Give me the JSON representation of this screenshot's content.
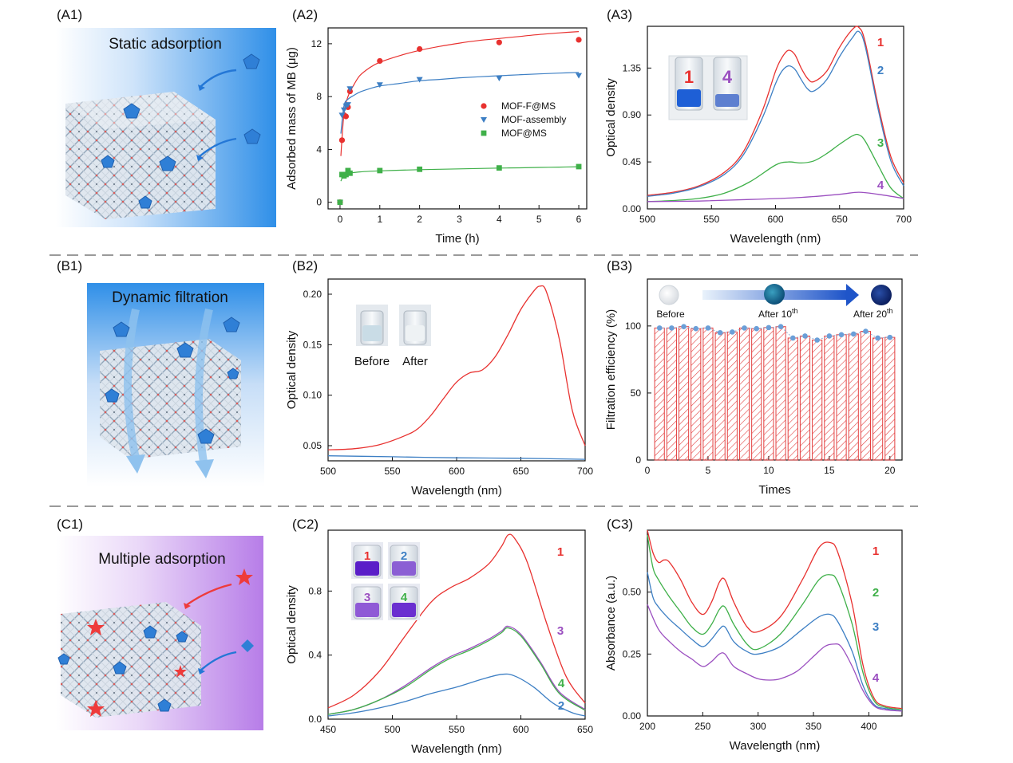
{
  "colors": {
    "red": "#e8312f",
    "blue": "#3d7fc4",
    "green": "#3fb049",
    "purple": "#9b4fc0",
    "divider": "#9a9a9a",
    "bar_hatch": "#e34040",
    "dot": "#6a9fd8"
  },
  "panel_labels": {
    "A1": "(A1)",
    "A2": "(A2)",
    "A3": "(A3)",
    "B1": "(B1)",
    "B2": "(B2)",
    "B3": "(B3)",
    "C1": "(C1)",
    "C2": "(C2)",
    "C3": "(C3)"
  },
  "illustrations": {
    "A1": {
      "title": "Static adsorption",
      "gradient": [
        "#ffffff",
        "#2f8fe8"
      ],
      "molecules": "pentagon"
    },
    "B1": {
      "title": "Dynamic filtration",
      "gradient": [
        "#2f8fe8",
        "#ffffff"
      ],
      "molecules": "pentagon"
    },
    "C1": {
      "title": "Multiple adsorption",
      "gradient": [
        "#ffffff",
        "#b77de8"
      ],
      "molecules": "star+pentagon"
    }
  },
  "chart_data": [
    {
      "id": "A2",
      "type": "scatter",
      "xlabel": "Time (h)",
      "ylabel": "Adsorbed mass of MB (μg)",
      "xlim": [
        -0.3,
        6.2
      ],
      "ylim": [
        -0.5,
        13.2
      ],
      "xticks": [
        0,
        1,
        2,
        3,
        4,
        5,
        6
      ],
      "yticks": [
        0,
        4,
        8,
        12
      ],
      "legend_position": "center-right",
      "series": [
        {
          "name": "MOF-F@MS",
          "color": "#e8312f",
          "marker": "circle",
          "x": [
            0,
            0.05,
            0.1,
            0.15,
            0.2,
            0.25,
            1,
            2,
            4,
            6
          ],
          "y": [
            0,
            4.7,
            6.6,
            6.5,
            7.2,
            8.4,
            10.7,
            11.6,
            12.1,
            12.3
          ],
          "fit_x": [
            0.02,
            0.1,
            0.2,
            0.35,
            0.5,
            0.75,
            1,
            1.5,
            2,
            2.5,
            3,
            3.5,
            4,
            4.5,
            5,
            5.5,
            6
          ],
          "fit_y": [
            3.5,
            6.7,
            8.0,
            8.9,
            9.6,
            10.2,
            10.6,
            11.1,
            11.5,
            11.8,
            12.05,
            12.25,
            12.4,
            12.55,
            12.7,
            12.82,
            12.92
          ]
        },
        {
          "name": "MOF-assembly",
          "color": "#3d7fc4",
          "marker": "triangle-down",
          "x": [
            0,
            0.05,
            0.1,
            0.15,
            0.2,
            0.25,
            1,
            2,
            4,
            6
          ],
          "y": [
            0,
            6.6,
            7.0,
            7.3,
            7.4,
            8.6,
            8.9,
            9.3,
            9.4,
            9.6
          ],
          "fit_x": [
            0.02,
            0.1,
            0.2,
            0.35,
            0.5,
            0.75,
            1,
            1.5,
            2,
            2.5,
            3,
            3.5,
            4,
            4.5,
            5,
            5.5,
            6
          ],
          "fit_y": [
            5.2,
            7.3,
            7.8,
            8.1,
            8.35,
            8.6,
            8.8,
            9.0,
            9.2,
            9.3,
            9.42,
            9.5,
            9.58,
            9.65,
            9.72,
            9.78,
            9.83
          ]
        },
        {
          "name": "MOF@MS",
          "color": "#3fb049",
          "marker": "square",
          "x": [
            0,
            0.05,
            0.1,
            0.15,
            0.2,
            0.25,
            1,
            2,
            4,
            6
          ],
          "y": [
            0,
            2.1,
            2.0,
            2.1,
            2.4,
            2.2,
            2.4,
            2.5,
            2.6,
            2.7
          ],
          "fit_x": [
            0.02,
            0.1,
            0.2,
            0.35,
            0.5,
            0.75,
            1,
            1.5,
            2,
            2.5,
            3,
            3.5,
            4,
            4.5,
            5,
            5.5,
            6
          ],
          "fit_y": [
            1.6,
            2.1,
            2.2,
            2.25,
            2.3,
            2.35,
            2.38,
            2.43,
            2.47,
            2.5,
            2.53,
            2.56,
            2.59,
            2.61,
            2.64,
            2.66,
            2.69
          ]
        }
      ]
    },
    {
      "id": "A3",
      "type": "line",
      "xlabel": "Wavelength (nm)",
      "ylabel": "Optical density",
      "xlim": [
        500,
        700
      ],
      "ylim": [
        0,
        1.75
      ],
      "xticks": [
        500,
        550,
        600,
        650,
        700
      ],
      "yticks": [
        0.0,
        0.45,
        0.9,
        1.35
      ],
      "ytick_labels": [
        "0.00",
        "0.45",
        "0.90",
        "1.35"
      ],
      "inset": {
        "labels": [
          "1",
          "4"
        ],
        "colors": [
          "#e8312f",
          "#9b4fc0"
        ],
        "liquid": [
          "#1e5fd6",
          "#5d7fd0"
        ]
      },
      "series": [
        {
          "name": "1",
          "color": "#e8312f",
          "x": [
            500,
            520,
            540,
            560,
            575,
            590,
            600,
            605,
            610,
            615,
            620,
            625,
            630,
            640,
            650,
            660,
            665,
            670,
            680,
            690,
            700
          ],
          "y": [
            0.13,
            0.16,
            0.22,
            0.35,
            0.55,
            0.95,
            1.32,
            1.45,
            1.52,
            1.48,
            1.35,
            1.25,
            1.22,
            1.32,
            1.55,
            1.72,
            1.74,
            1.6,
            1.0,
            0.5,
            0.25
          ]
        },
        {
          "name": "2",
          "color": "#3d7fc4",
          "x": [
            500,
            520,
            540,
            560,
            575,
            590,
            600,
            605,
            610,
            615,
            620,
            625,
            630,
            640,
            650,
            660,
            665,
            670,
            680,
            690,
            700
          ],
          "y": [
            0.12,
            0.15,
            0.21,
            0.33,
            0.52,
            0.88,
            1.2,
            1.32,
            1.37,
            1.34,
            1.24,
            1.15,
            1.13,
            1.24,
            1.46,
            1.64,
            1.7,
            1.56,
            0.96,
            0.46,
            0.22
          ]
        },
        {
          "name": "3",
          "color": "#3fb049",
          "x": [
            500,
            520,
            540,
            560,
            580,
            600,
            610,
            620,
            630,
            640,
            650,
            660,
            665,
            670,
            680,
            690,
            700
          ],
          "y": [
            0.07,
            0.08,
            0.1,
            0.15,
            0.26,
            0.42,
            0.45,
            0.44,
            0.46,
            0.53,
            0.62,
            0.7,
            0.71,
            0.65,
            0.42,
            0.2,
            0.1
          ]
        },
        {
          "name": "4",
          "color": "#9b4fc0",
          "x": [
            500,
            540,
            580,
            620,
            650,
            665,
            680,
            700
          ],
          "y": [
            0.07,
            0.075,
            0.09,
            0.11,
            0.14,
            0.16,
            0.14,
            0.1
          ]
        }
      ]
    },
    {
      "id": "B2",
      "type": "line",
      "xlabel": "Wavelength (nm)",
      "ylabel": "Optical density",
      "xlim": [
        500,
        700
      ],
      "ylim": [
        0.035,
        0.215
      ],
      "xticks": [
        500,
        550,
        600,
        650,
        700
      ],
      "yticks": [
        0.05,
        0.1,
        0.15,
        0.2
      ],
      "ytick_labels": [
        "0.05",
        "0.10",
        "0.15",
        "0.20"
      ],
      "inset": {
        "labels": [
          "Before",
          "After"
        ]
      },
      "series": [
        {
          "name": "Before",
          "color": "#e8312f",
          "x": [
            500,
            520,
            540,
            560,
            570,
            580,
            590,
            600,
            610,
            620,
            630,
            640,
            650,
            660,
            665,
            670,
            680,
            690,
            700
          ],
          "y": [
            0.046,
            0.047,
            0.051,
            0.06,
            0.067,
            0.08,
            0.097,
            0.113,
            0.122,
            0.125,
            0.138,
            0.16,
            0.185,
            0.203,
            0.208,
            0.202,
            0.155,
            0.085,
            0.05
          ]
        },
        {
          "name": "After",
          "color": "#3d7fc4",
          "x": [
            500,
            550,
            600,
            650,
            700
          ],
          "y": [
            0.04,
            0.039,
            0.038,
            0.0375,
            0.0365
          ]
        }
      ]
    },
    {
      "id": "B3",
      "type": "bar",
      "xlabel": "Times",
      "ylabel": "Filtration efficiency (%)",
      "xlim": [
        0,
        21
      ],
      "ylim": [
        0,
        135
      ],
      "xticks": [
        0,
        5,
        10,
        15,
        20
      ],
      "yticks": [
        0,
        50,
        100
      ],
      "categories": [
        1,
        2,
        3,
        4,
        5,
        6,
        7,
        8,
        9,
        10,
        11,
        12,
        13,
        14,
        15,
        16,
        17,
        18,
        19,
        20
      ],
      "values": [
        98.5,
        98.5,
        99.5,
        98,
        98.5,
        95,
        95.5,
        98.5,
        98,
        98.8,
        99.5,
        91,
        92.5,
        89.5,
        92.5,
        93.5,
        94,
        96,
        91,
        91.5
      ],
      "inset": {
        "labels": [
          "Before",
          "After 10",
          "After 20"
        ],
        "superscript": "th"
      }
    },
    {
      "id": "C2",
      "type": "line",
      "xlabel": "Wavelength (nm)",
      "ylabel": "Optical density",
      "xlim": [
        450,
        650
      ],
      "ylim": [
        0,
        1.18
      ],
      "xticks": [
        450,
        500,
        550,
        600,
        650
      ],
      "yticks": [
        0,
        0.4,
        0.8
      ],
      "ytick_labels": [
        "0.0",
        "0.4",
        "0.8"
      ],
      "inset": {
        "labels": [
          "1",
          "2",
          "3",
          "4"
        ],
        "colors": [
          "#e8312f",
          "#3d7fc4",
          "#9b4fc0",
          "#3fb049"
        ],
        "liquid": [
          "#5a1ec8",
          "#8b5fd4",
          "#8f5ad6",
          "#6a2fd0"
        ]
      },
      "series": [
        {
          "name": "1",
          "color": "#e8312f",
          "x": [
            450,
            470,
            490,
            510,
            530,
            545,
            560,
            575,
            585,
            590,
            595,
            605,
            620,
            635,
            650
          ],
          "y": [
            0.07,
            0.15,
            0.3,
            0.52,
            0.73,
            0.82,
            0.88,
            0.97,
            1.08,
            1.15,
            1.13,
            0.98,
            0.6,
            0.27,
            0.1
          ]
        },
        {
          "name": "3",
          "color": "#9b4fc0",
          "x": [
            450,
            470,
            490,
            510,
            530,
            545,
            560,
            575,
            585,
            590,
            600,
            615,
            630,
            650
          ],
          "y": [
            0.03,
            0.06,
            0.12,
            0.21,
            0.32,
            0.39,
            0.44,
            0.5,
            0.55,
            0.58,
            0.53,
            0.36,
            0.17,
            0.06
          ]
        },
        {
          "name": "4",
          "color": "#3fb049",
          "x": [
            450,
            470,
            490,
            510,
            530,
            545,
            560,
            575,
            585,
            590,
            600,
            615,
            630,
            650
          ],
          "y": [
            0.03,
            0.06,
            0.12,
            0.2,
            0.31,
            0.38,
            0.43,
            0.49,
            0.54,
            0.57,
            0.52,
            0.35,
            0.16,
            0.055
          ]
        },
        {
          "name": "2",
          "color": "#3d7fc4",
          "x": [
            450,
            470,
            490,
            510,
            530,
            550,
            570,
            585,
            595,
            610,
            625,
            640,
            650
          ],
          "y": [
            0.02,
            0.04,
            0.07,
            0.11,
            0.16,
            0.2,
            0.25,
            0.28,
            0.27,
            0.2,
            0.1,
            0.04,
            0.02
          ]
        }
      ]
    },
    {
      "id": "C3",
      "type": "line",
      "xlabel": "Wavelength (nm)",
      "ylabel": "Absorbance (a.u.)",
      "xlim": [
        200,
        430
      ],
      "ylim": [
        0,
        0.75
      ],
      "xticks": [
        200,
        250,
        300,
        350,
        400
      ],
      "yticks": [
        0,
        0.25,
        0.5
      ],
      "ytick_labels": [
        "0.00",
        "0.25",
        "0.50"
      ],
      "series": [
        {
          "name": "1",
          "color": "#e8312f",
          "x": [
            200,
            205,
            210,
            215,
            220,
            230,
            240,
            250,
            258,
            265,
            270,
            278,
            290,
            300,
            320,
            340,
            355,
            365,
            372,
            385,
            395,
            405,
            415,
            430
          ],
          "y": [
            0.75,
            0.66,
            0.62,
            0.63,
            0.62,
            0.55,
            0.46,
            0.41,
            0.46,
            0.54,
            0.55,
            0.46,
            0.36,
            0.34,
            0.4,
            0.55,
            0.68,
            0.7,
            0.66,
            0.45,
            0.2,
            0.07,
            0.04,
            0.03
          ]
        },
        {
          "name": "2",
          "color": "#3fb049",
          "x": [
            200,
            205,
            210,
            220,
            230,
            240,
            250,
            258,
            265,
            270,
            278,
            290,
            300,
            320,
            340,
            355,
            365,
            372,
            385,
            395,
            405,
            415,
            430
          ],
          "y": [
            0.73,
            0.6,
            0.55,
            0.48,
            0.42,
            0.36,
            0.33,
            0.37,
            0.43,
            0.44,
            0.37,
            0.29,
            0.27,
            0.33,
            0.45,
            0.55,
            0.57,
            0.54,
            0.37,
            0.17,
            0.06,
            0.035,
            0.025
          ]
        },
        {
          "name": "3",
          "color": "#3d7fc4",
          "x": [
            200,
            205,
            210,
            220,
            230,
            240,
            250,
            258,
            265,
            270,
            278,
            290,
            300,
            320,
            340,
            355,
            365,
            372,
            385,
            395,
            405,
            415,
            430
          ],
          "y": [
            0.58,
            0.48,
            0.44,
            0.39,
            0.35,
            0.31,
            0.28,
            0.31,
            0.35,
            0.36,
            0.3,
            0.26,
            0.25,
            0.28,
            0.35,
            0.4,
            0.41,
            0.38,
            0.26,
            0.12,
            0.045,
            0.03,
            0.02
          ]
        },
        {
          "name": "4",
          "color": "#9b4fc0",
          "x": [
            200,
            210,
            220,
            230,
            240,
            250,
            258,
            265,
            270,
            278,
            290,
            300,
            310,
            320,
            335,
            350,
            360,
            368,
            375,
            385,
            395,
            405,
            415,
            430
          ],
          "y": [
            0.45,
            0.35,
            0.3,
            0.26,
            0.23,
            0.2,
            0.22,
            0.25,
            0.25,
            0.2,
            0.17,
            0.15,
            0.145,
            0.15,
            0.18,
            0.24,
            0.28,
            0.29,
            0.28,
            0.2,
            0.1,
            0.04,
            0.025,
            0.02
          ]
        }
      ]
    }
  ]
}
